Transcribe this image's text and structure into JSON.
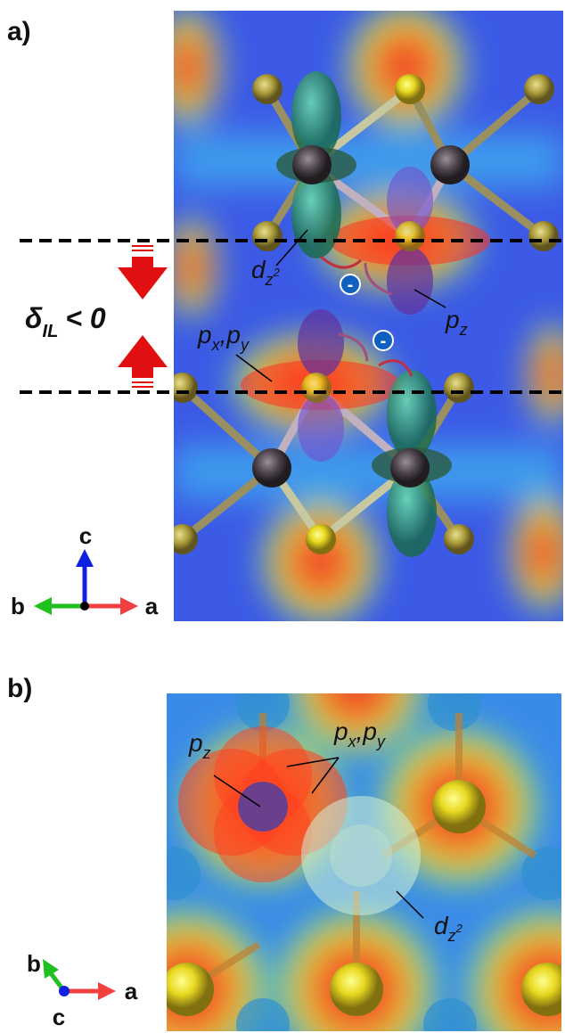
{
  "panel_a": {
    "label": "a)",
    "delta": {
      "symbol": "δ",
      "subscript": "IL",
      "relation": "< 0"
    },
    "dz2": {
      "base": "d",
      "sub": "z",
      "sup": "2"
    },
    "pz": {
      "base": "p",
      "sub": "z"
    },
    "pxpy": {
      "base1": "p",
      "sub1": "x",
      "comma": ",",
      "base2": "p",
      "sub2": "y"
    },
    "charges": [
      "-",
      "-"
    ],
    "axes": {
      "up": "c",
      "left": "b",
      "right": "a"
    }
  },
  "panel_b": {
    "label": "b)",
    "pz": {
      "base": "p",
      "sub": "z"
    },
    "pxpy": {
      "base1": "p",
      "sub1": "x",
      "comma": ",",
      "base2": "p",
      "sub2": "y"
    },
    "dz2": {
      "base": "d",
      "sub": "z",
      "sup": "2"
    },
    "axes": {
      "up": "b",
      "right": "a",
      "view": "c"
    }
  }
}
